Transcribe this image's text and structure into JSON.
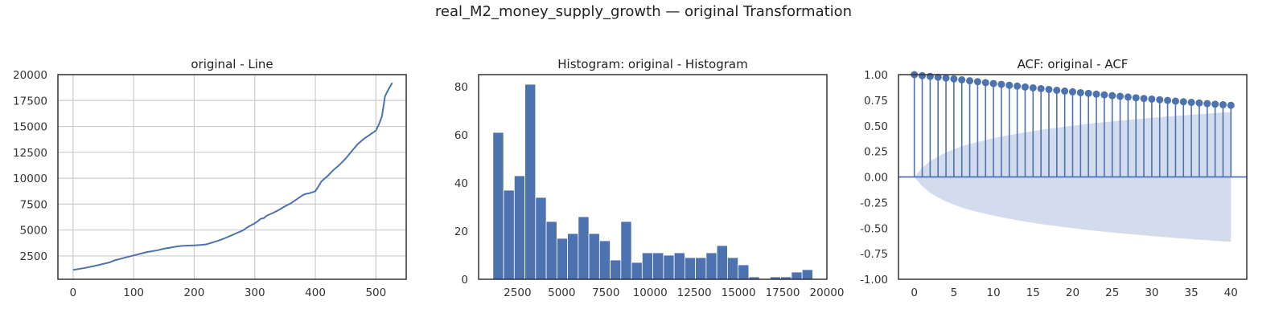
{
  "figure": {
    "title": "real_M2_money_supply_growth — original Transformation"
  },
  "chart_data": [
    {
      "type": "line",
      "title": "original - Line",
      "xlabel": "",
      "ylabel": "",
      "xlim": [
        -25,
        550
      ],
      "ylim": [
        250,
        20000
      ],
      "grid": true,
      "x_ticks": [
        0,
        100,
        200,
        300,
        400,
        500
      ],
      "y_ticks": [
        2500,
        5000,
        7500,
        10000,
        12500,
        15000,
        17500,
        20000
      ],
      "line_color": "#4c72b0",
      "series": [
        {
          "x": [
            0,
            20,
            40,
            60,
            70,
            80,
            90,
            100,
            110,
            120,
            130,
            140,
            150,
            160,
            170,
            180,
            190,
            200,
            210,
            220,
            230,
            240,
            250,
            260,
            270,
            280,
            290,
            295,
            300,
            305,
            310,
            315,
            320,
            330,
            340,
            350,
            360,
            370,
            380,
            385,
            390,
            400,
            405,
            410,
            420,
            430,
            440,
            450,
            460,
            470,
            480,
            490,
            500,
            505,
            510,
            515,
            520,
            527
          ],
          "y": [
            1150,
            1350,
            1600,
            1880,
            2100,
            2250,
            2400,
            2550,
            2700,
            2850,
            2950,
            3050,
            3200,
            3300,
            3400,
            3470,
            3500,
            3520,
            3560,
            3620,
            3800,
            3980,
            4200,
            4450,
            4700,
            4950,
            5350,
            5500,
            5650,
            5850,
            6100,
            6150,
            6400,
            6650,
            6950,
            7300,
            7600,
            8000,
            8400,
            8500,
            8550,
            8750,
            9200,
            9700,
            10200,
            10800,
            11300,
            11900,
            12600,
            13300,
            13800,
            14200,
            14600,
            15200,
            16000,
            17900,
            18500,
            19200
          ]
        }
      ]
    },
    {
      "type": "bar",
      "title": "Histogram: original - Histogram",
      "xlabel": "",
      "ylabel": "",
      "xlim": [
        300,
        20000
      ],
      "ylim": [
        0,
        85
      ],
      "grid": false,
      "x_ticks": [
        2500,
        5000,
        7500,
        10000,
        12500,
        15000,
        17500,
        20000
      ],
      "y_ticks": [
        0,
        20,
        40,
        60,
        80
      ],
      "bar_color": "#4c72b0",
      "bin_start": 1110,
      "bin_width": 603,
      "values": [
        61,
        37,
        43,
        81,
        34,
        24,
        17,
        19,
        26,
        19,
        16,
        8,
        24,
        7,
        11,
        11,
        10,
        11,
        9,
        9,
        11,
        14,
        9,
        6,
        1,
        0,
        1,
        1,
        3,
        4
      ]
    },
    {
      "type": "stem",
      "title": "ACF: original - ACF",
      "xlabel": "",
      "ylabel": "",
      "xlim": [
        -2,
        42
      ],
      "ylim": [
        -1.0,
        1.0
      ],
      "grid": false,
      "x_ticks": [
        0,
        5,
        10,
        15,
        20,
        25,
        30,
        35,
        40
      ],
      "y_ticks": [
        -1.0,
        -0.75,
        -0.5,
        -0.25,
        0.0,
        0.25,
        0.5,
        0.75,
        1.0
      ],
      "stem_color": "#4c72b0",
      "band_color": "#d2dcec",
      "lags": [
        0,
        1,
        2,
        3,
        4,
        5,
        6,
        7,
        8,
        9,
        10,
        11,
        12,
        13,
        14,
        15,
        16,
        17,
        18,
        19,
        20,
        21,
        22,
        23,
        24,
        25,
        26,
        27,
        28,
        29,
        30,
        31,
        32,
        33,
        34,
        35,
        36,
        37,
        38,
        39,
        40
      ],
      "values": [
        1.0,
        0.99,
        0.983,
        0.975,
        0.967,
        0.958,
        0.949,
        0.94,
        0.931,
        0.922,
        0.913,
        0.905,
        0.896,
        0.888,
        0.879,
        0.871,
        0.863,
        0.855,
        0.847,
        0.839,
        0.832,
        0.824,
        0.817,
        0.809,
        0.802,
        0.795,
        0.788,
        0.781,
        0.774,
        0.767,
        0.761,
        0.754,
        0.748,
        0.741,
        0.735,
        0.729,
        0.723,
        0.717,
        0.711,
        0.706,
        0.7
      ],
      "confidence_upper": [
        0.0,
        0.09,
        0.155,
        0.2,
        0.24,
        0.27,
        0.3,
        0.322,
        0.342,
        0.36,
        0.378,
        0.394,
        0.409,
        0.423,
        0.436,
        0.448,
        0.46,
        0.471,
        0.481,
        0.491,
        0.501,
        0.51,
        0.519,
        0.527,
        0.535,
        0.543,
        0.55,
        0.558,
        0.565,
        0.571,
        0.578,
        0.584,
        0.59,
        0.596,
        0.602,
        0.608,
        0.613,
        0.618,
        0.624,
        0.629,
        0.634
      ]
    }
  ]
}
